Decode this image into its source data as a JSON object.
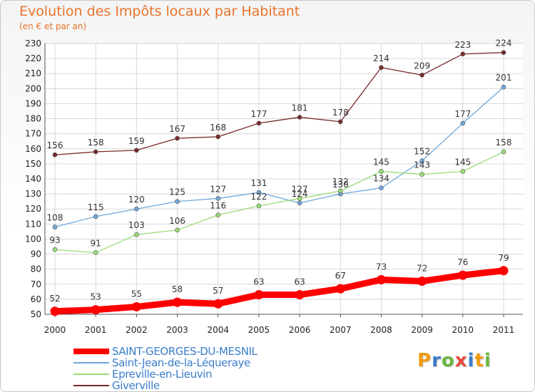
{
  "header": {
    "title": "Evolution des Impôts locaux par Habitant",
    "subtitle": "(en € et par an)"
  },
  "logo": {
    "text": "Proxiti"
  },
  "chart_data": {
    "type": "line",
    "title": "Evolution des Impôts locaux par Habitant",
    "subtitle": "(en € et par an)",
    "x": [
      "2000",
      "2001",
      "2002",
      "2003",
      "2004",
      "2005",
      "2006",
      "2007",
      "2008",
      "2009",
      "2010",
      "2011"
    ],
    "ylim": [
      50,
      230
    ],
    "yticks": [
      50,
      60,
      70,
      80,
      90,
      100,
      110,
      120,
      130,
      140,
      150,
      160,
      170,
      180,
      190,
      200,
      210,
      220,
      230
    ],
    "grid": true,
    "legend_position": "bottom-left",
    "series": [
      {
        "name": "SAINT-GEORGES-DU-MESNIL",
        "color": "#ff0000",
        "emphasis": true,
        "values": [
          52,
          53,
          55,
          58,
          57,
          63,
          63,
          67,
          73,
          72,
          76,
          79
        ]
      },
      {
        "name": "Saint-Jean-de-la-Léqueraye",
        "color": "#6fa8dc",
        "values": [
          108,
          115,
          120,
          125,
          127,
          131,
          124,
          130,
          134,
          152,
          177,
          201
        ]
      },
      {
        "name": "Epreville-en-Lieuvin",
        "color": "#99dd77",
        "values": [
          93,
          91,
          103,
          106,
          116,
          122,
          127,
          132,
          145,
          143,
          145,
          158
        ]
      },
      {
        "name": "Giverville",
        "color": "#7a2a2a",
        "values": [
          156,
          158,
          159,
          167,
          168,
          177,
          181,
          178,
          214,
          209,
          223,
          224
        ]
      }
    ]
  }
}
